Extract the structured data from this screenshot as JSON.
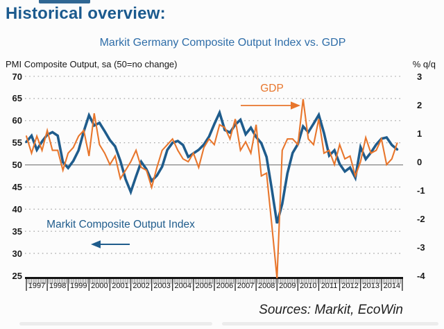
{
  "page": {
    "heading": "Historical overview:",
    "source_note": "Sources: Markit, EcoWin"
  },
  "chart": {
    "title": "Markit Germany Composite Output Index vs. GDP",
    "left_axis_header": "PMI Composite Output, sa (50=no change)",
    "right_axis_header": "% q/q",
    "gdp_annotation": "GDP",
    "pmi_annotation": "Markit Composite Output Index",
    "colors": {
      "pmi_line": "#1f5c8c",
      "gdp_line": "#e8762c",
      "heading_blue": "#1b5a8e",
      "title_blue": "#2e6da8",
      "grid_dotted": "#9a9a9a",
      "grid_solid_50": "#7a7a7a",
      "axis_black": "#141414"
    }
  },
  "chart_data": {
    "type": "line",
    "title": "Markit Germany Composite Output Index vs. GDP",
    "subtitle_left": "PMI Composite Output, sa (50=no change)",
    "subtitle_right": "% q/q",
    "grid": "dotted horizontal, solid line at PMI=50",
    "legend_position": "in-plot annotations with arrows",
    "x_start": 1997.0,
    "x_step": 0.25,
    "x_year_labels": [
      "1997",
      "1998",
      "1999",
      "2000",
      "2001",
      "2002",
      "2003",
      "2004",
      "2005",
      "2006",
      "2007",
      "2008",
      "2009",
      "2010",
      "2011",
      "2012",
      "2013",
      "2014"
    ],
    "left_axis": {
      "label": "PMI Composite Output, sa (50=no change)",
      "range": [
        25,
        70
      ],
      "ticks": [
        70,
        65,
        60,
        55,
        50,
        45,
        40,
        35,
        30,
        25
      ],
      "baseline_value": 50
    },
    "right_axis": {
      "label": "% q/q",
      "range": [
        -4,
        3
      ],
      "ticks": [
        3,
        2,
        1,
        0,
        -1,
        -2,
        -3,
        -4
      ]
    },
    "series": [
      {
        "name": "Markit Composite Output Index",
        "axis": "left",
        "color": "#1f5c8c",
        "line_width": 3.6,
        "values": [
          55.2,
          56.6,
          53.4,
          55.3,
          56.8,
          57.4,
          56.6,
          50.6,
          49.3,
          50.9,
          53.3,
          57.6,
          61.2,
          58.9,
          59.5,
          57.6,
          55.6,
          54.2,
          50.9,
          46.8,
          43.9,
          47.4,
          50.7,
          49.0,
          46.4,
          47.6,
          49.6,
          53.4,
          55.0,
          55.4,
          54.5,
          51.8,
          52.6,
          53.4,
          54.6,
          56.4,
          59.2,
          61.8,
          57.9,
          57.3,
          59.1,
          60.2,
          56.9,
          58.4,
          56.3,
          54.9,
          51.8,
          44.6,
          36.8,
          41.2,
          48.1,
          52.7,
          54.7,
          58.7,
          57.4,
          59.3,
          61.3,
          57.2,
          52.1,
          53.3,
          50.2,
          48.5,
          49.4,
          47.1,
          54.0,
          51.3,
          52.8,
          54.6,
          55.9,
          56.2,
          54.5,
          53.5
        ]
      },
      {
        "name": "GDP",
        "axis": "right",
        "color": "#e8762c",
        "line_width": 2.1,
        "values": [
          0.9,
          0.3,
          0.9,
          0.4,
          1.1,
          0.4,
          0.4,
          -0.3,
          0.3,
          0.5,
          0.9,
          1.1,
          0.2,
          1.7,
          0.6,
          0.3,
          -0.1,
          0.2,
          -0.6,
          -0.3,
          0.0,
          0.4,
          -0.2,
          -0.3,
          -0.9,
          -0.2,
          0.4,
          0.6,
          0.8,
          0.4,
          0.1,
          0.0,
          0.3,
          -0.2,
          0.5,
          0.8,
          0.6,
          1.3,
          1.2,
          0.8,
          1.5,
          0.4,
          0.7,
          0.3,
          1.3,
          -0.5,
          -0.4,
          -2.2,
          -4.1,
          0.4,
          0.8,
          0.8,
          0.6,
          2.2,
          0.8,
          0.6,
          1.5,
          0.3,
          0.4,
          -0.1,
          0.6,
          0.1,
          0.2,
          -0.5,
          0.0,
          0.85,
          0.3,
          0.4,
          0.8,
          -0.1,
          0.1,
          0.65
        ]
      }
    ]
  }
}
